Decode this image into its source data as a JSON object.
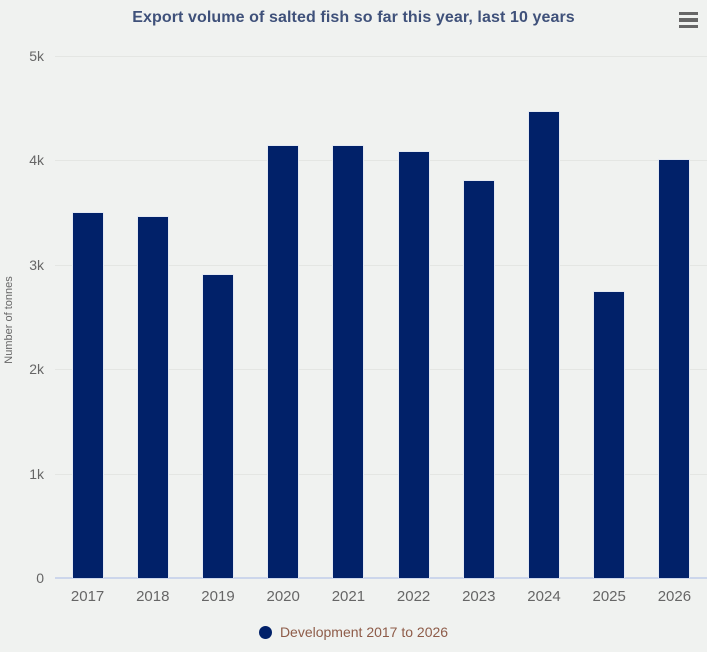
{
  "header": {
    "title": "Export volume of salted fish so far this year, last 10 years"
  },
  "menu": {
    "icon": "hamburger-menu-icon"
  },
  "chart_data": {
    "type": "bar",
    "title": "Export volume of salted fish so far this year, last 10 years",
    "categories": [
      "2017",
      "2018",
      "2019",
      "2020",
      "2021",
      "2022",
      "2023",
      "2024",
      "2025",
      "2026"
    ],
    "values": [
      3510,
      3465,
      2915,
      4150,
      4150,
      4090,
      3815,
      4470,
      2750,
      4010
    ],
    "series_name": "Development 2017 to 2026",
    "xlabel": "",
    "ylabel": "Number of tonnes",
    "ylim": [
      0,
      5000
    ],
    "yticks": [
      0,
      1000,
      2000,
      3000,
      4000,
      5000
    ],
    "ytick_labels": [
      "0",
      "1k",
      "2k",
      "3k",
      "4k",
      "5k"
    ],
    "grid": true,
    "legend_position": "bottom"
  },
  "legend": {
    "label": "Development 2017 to 2026"
  },
  "colors": {
    "bar": "#012169",
    "title": "#3f517a",
    "legend_text": "#8e5c49",
    "axis_label": "#666666",
    "background": "#f0f2f0",
    "gridline": "#e4e6e3",
    "baseline": "#ccd6eb",
    "menu_icon": "#666666"
  }
}
